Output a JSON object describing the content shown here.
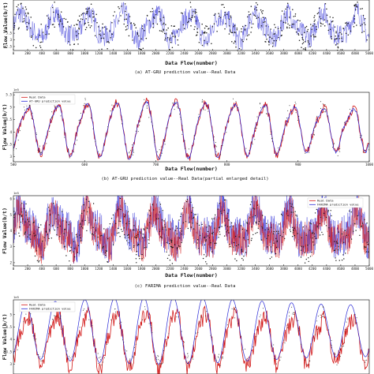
{
  "colors": {
    "real": "#d21414",
    "pred": "#2a2ad6",
    "dot": "#1a1a1a",
    "axis": "#000000"
  },
  "chart_data": [
    {
      "type": "line",
      "caption": "(a) AT-GRU prediction value--Real Data",
      "xlabel": "Data Flow(number)",
      "ylabel": "Flow Value(b/t)",
      "exponent_label": "",
      "xlim": [
        0,
        5000
      ],
      "ylim": [
        2.2,
        6.0
      ],
      "x_ticks": [
        "0",
        "200",
        "400",
        "600",
        "800",
        "1000",
        "1200",
        "1400",
        "1600",
        "1800",
        "2000",
        "2200",
        "2400",
        "2600",
        "2800",
        "3000",
        "3200",
        "3400",
        "3600",
        "3800",
        "4000",
        "4200",
        "4400",
        "4600",
        "4800",
        "5000"
      ],
      "y_ticks": [
        "3.5",
        "3",
        "2.5"
      ],
      "legend": [],
      "series": [
        {
          "name": "",
          "values": "periodic series, period ~470 samples, amplitude ~1.0, mean ~4.0, blue with black markers"
        }
      ]
    },
    {
      "type": "line",
      "caption": "(b) AT-GRU prediction value--Real Data(partial enlarged detail)",
      "xlabel": "Data Flow(number)",
      "ylabel": "Flow Value(b/t)",
      "exponent_label": "1e5",
      "xlim": [
        500,
        1000
      ],
      "ylim": [
        2.8,
        5.6
      ],
      "x_ticks": [
        "500",
        "600",
        "700",
        "800",
        "900",
        "1000"
      ],
      "y_ticks": [
        "5.5",
        "5",
        "4.5",
        "4",
        "3.5",
        "3"
      ],
      "legend": [
        "Real Data",
        "AT-GRU prediction value"
      ],
      "series": [
        {
          "name": "Real Data",
          "values": "12 daily cycles, peaks ~5.0-5.3, troughs ~3.0-3.5"
        },
        {
          "name": "AT-GRU prediction value",
          "values": "tracks real data closely"
        }
      ]
    },
    {
      "type": "line",
      "caption": "(c) FARIMA prediction value--Real Data",
      "xlabel": "Data Flow(number)",
      "ylabel": "Flow Value(b/t)",
      "exponent_label": "1e5",
      "xlim": [
        0,
        5000
      ],
      "ylim": [
        1.8,
        6.2
      ],
      "x_ticks": [
        "0",
        "200",
        "400",
        "600",
        "800",
        "1000",
        "1200",
        "1400",
        "1600",
        "1800",
        "2000",
        "2200",
        "2400",
        "2600",
        "2800",
        "3000",
        "3200",
        "3400",
        "3600",
        "3800",
        "4000",
        "4200",
        "4400",
        "4600",
        "4800",
        "5000"
      ],
      "y_ticks": [
        "6",
        "5",
        "4",
        "3",
        "2"
      ],
      "legend": [
        "Real Data",
        "FARIMA prediction value"
      ],
      "series": [
        {
          "name": "Real Data",
          "values": "dense periodic series, range ~2.2-5.8"
        },
        {
          "name": "FARIMA prediction value",
          "values": "dense periodic series, larger swings"
        }
      ]
    },
    {
      "type": "line",
      "caption": "",
      "xlabel": "",
      "ylabel": "Flow Value(b/t)",
      "exponent_label": "1e5",
      "xlim": [
        500,
        1000
      ],
      "ylim": [
        2.6,
        5.6
      ],
      "x_ticks": [],
      "y_ticks": [
        "5",
        "4.5",
        "4",
        "3.5",
        "3"
      ],
      "legend": [
        "Real Data",
        "FARIMA prediction value"
      ],
      "series": [
        {
          "name": "Real Data",
          "values": "12 cycles, strong red oscillation"
        },
        {
          "name": "FARIMA prediction value",
          "values": "smoother blue curve, peaks up to ~5.5"
        }
      ]
    }
  ]
}
